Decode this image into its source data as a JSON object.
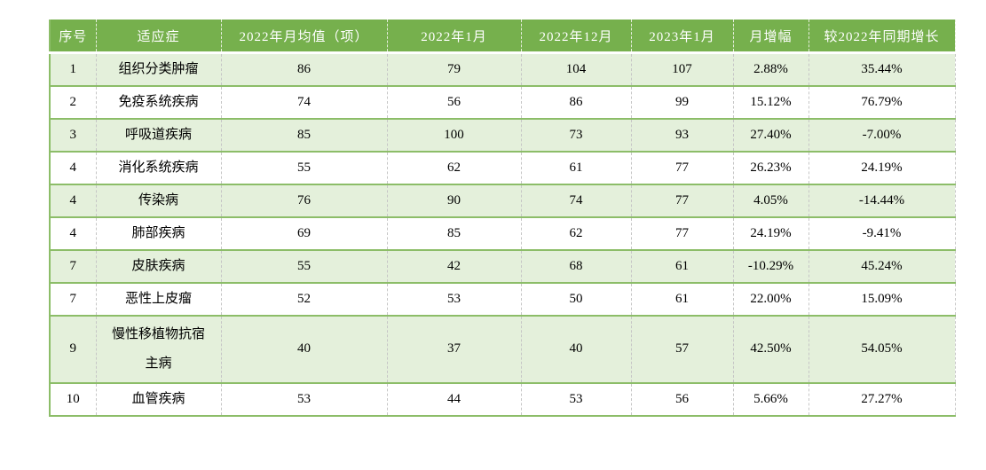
{
  "page": {
    "background_color": "#ffffff"
  },
  "colors": {
    "header_bg": "#76b04d",
    "header_text": "#ffffff",
    "banded_row_bg": "#e4f0db",
    "plain_row_bg": "#ffffff",
    "row_border": "#8cbd68",
    "column_divider": "#c6c6c6",
    "body_text": "#000000"
  },
  "table": {
    "columns": [
      {
        "key": "index",
        "label": "序号"
      },
      {
        "key": "indication",
        "label": "适应症"
      },
      {
        "key": "avg_2022",
        "label": "2022年月均值（项）"
      },
      {
        "key": "jan_2022",
        "label": "2022年1月"
      },
      {
        "key": "dec_2022",
        "label": "2022年12月"
      },
      {
        "key": "jan_2023",
        "label": "2023年1月"
      },
      {
        "key": "mom_growth",
        "label": "月增幅"
      },
      {
        "key": "yoy_growth",
        "label": "较2022年同期增长"
      }
    ],
    "rows": [
      {
        "cells": [
          "1",
          "组织分类肿瘤",
          "86",
          "79",
          "104",
          "107",
          "2.88%",
          "35.44%"
        ]
      },
      {
        "cells": [
          "2",
          "免疫系统疾病",
          "74",
          "56",
          "86",
          "99",
          "15.12%",
          "76.79%"
        ]
      },
      {
        "cells": [
          "3",
          "呼吸道疾病",
          "85",
          "100",
          "73",
          "93",
          "27.40%",
          "-7.00%"
        ]
      },
      {
        "cells": [
          "4",
          "消化系统疾病",
          "55",
          "62",
          "61",
          "77",
          "26.23%",
          "24.19%"
        ]
      },
      {
        "cells": [
          "4",
          "传染病",
          "76",
          "90",
          "74",
          "77",
          "4.05%",
          "-14.44%"
        ]
      },
      {
        "cells": [
          "4",
          "肺部疾病",
          "69",
          "85",
          "62",
          "77",
          "24.19%",
          "-9.41%"
        ]
      },
      {
        "cells": [
          "7",
          "皮肤疾病",
          "55",
          "42",
          "68",
          "61",
          "-10.29%",
          "45.24%"
        ]
      },
      {
        "cells": [
          "7",
          "恶性上皮瘤",
          "52",
          "53",
          "50",
          "61",
          "22.00%",
          "15.09%"
        ]
      },
      {
        "cells": [
          "9",
          "慢性移植物抗宿主病",
          "40",
          "37",
          "40",
          "57",
          "42.50%",
          "54.05%"
        ]
      },
      {
        "cells": [
          "10",
          "血管疾病",
          "53",
          "44",
          "53",
          "56",
          "5.66%",
          "27.27%"
        ]
      }
    ]
  },
  "chart_data": {
    "type": "table",
    "columns": [
      "序号",
      "适应症",
      "2022年月均值（项）",
      "2022年1月",
      "2022年12月",
      "2023年1月",
      "月增幅",
      "较2022年同期增长"
    ],
    "rows": [
      [
        "1",
        "组织分类肿瘤",
        86,
        79,
        104,
        107,
        "2.88%",
        "35.44%"
      ],
      [
        "2",
        "免疫系统疾病",
        74,
        56,
        86,
        99,
        "15.12%",
        "76.79%"
      ],
      [
        "3",
        "呼吸道疾病",
        85,
        100,
        73,
        93,
        "27.40%",
        "-7.00%"
      ],
      [
        "4",
        "消化系统疾病",
        55,
        62,
        61,
        77,
        "26.23%",
        "24.19%"
      ],
      [
        "4",
        "传染病",
        76,
        90,
        74,
        77,
        "4.05%",
        "-14.44%"
      ],
      [
        "4",
        "肺部疾病",
        69,
        85,
        62,
        77,
        "24.19%",
        "-9.41%"
      ],
      [
        "7",
        "皮肤疾病",
        55,
        42,
        68,
        61,
        "-10.29%",
        "45.24%"
      ],
      [
        "7",
        "恶性上皮瘤",
        52,
        53,
        50,
        61,
        "22.00%",
        "15.09%"
      ],
      [
        "9",
        "慢性移植物抗宿主病",
        40,
        37,
        40,
        57,
        "42.50%",
        "54.05%"
      ],
      [
        "10",
        "血管疾病",
        53,
        44,
        53,
        56,
        "5.66%",
        "27.27%"
      ]
    ]
  }
}
